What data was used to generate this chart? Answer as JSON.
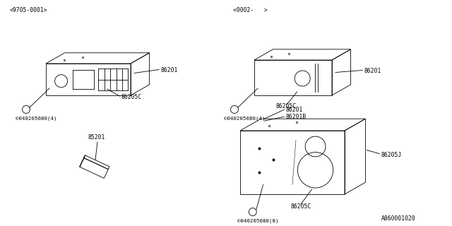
{
  "background_color": "#ffffff",
  "line_color": "#000000",
  "text_color": "#000000",
  "part_labels": {
    "top_left_code": "<9705-0001>",
    "top_right_code": "<0002-   >",
    "radio1_label": "86201",
    "radio1_screw_label": "86205C",
    "radio1_bolt_label": "©040205080(4)",
    "radio2_label": "86201",
    "radio2_screw_label": "86205C",
    "radio2_bolt_label": "©040205080(4)",
    "antenna_label": "85201",
    "box_label1": "86201",
    "box_label2": "86201B",
    "box_screw_label": "86205C",
    "box_bolt_label": "©040205080(8)",
    "box_speaker_label": "86205J",
    "box_speaker2_label": "86205C",
    "diagram_code": "A860001020"
  },
  "figsize": [
    6.4,
    3.2
  ],
  "dpi": 100
}
